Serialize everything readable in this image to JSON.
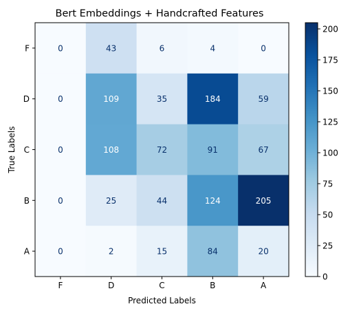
{
  "chart_data": {
    "type": "heatmap",
    "title": "Bert Embeddings + Handcrafted Features",
    "xlabel": "Predicted Labels",
    "ylabel": "True Labels",
    "x_categories": [
      "F",
      "D",
      "C",
      "B",
      "A"
    ],
    "y_categories": [
      "F",
      "D",
      "C",
      "B",
      "A"
    ],
    "matrix": [
      [
        0,
        43,
        6,
        4,
        0
      ],
      [
        0,
        109,
        35,
        184,
        59
      ],
      [
        0,
        108,
        72,
        91,
        67
      ],
      [
        0,
        25,
        44,
        124,
        205
      ],
      [
        0,
        2,
        15,
        84,
        20
      ]
    ],
    "colormap": "Blues",
    "vmin": 0,
    "vmax": 205,
    "colorbar_ticks": [
      0,
      25,
      50,
      75,
      100,
      125,
      150,
      175,
      200
    ],
    "grid": false
  }
}
